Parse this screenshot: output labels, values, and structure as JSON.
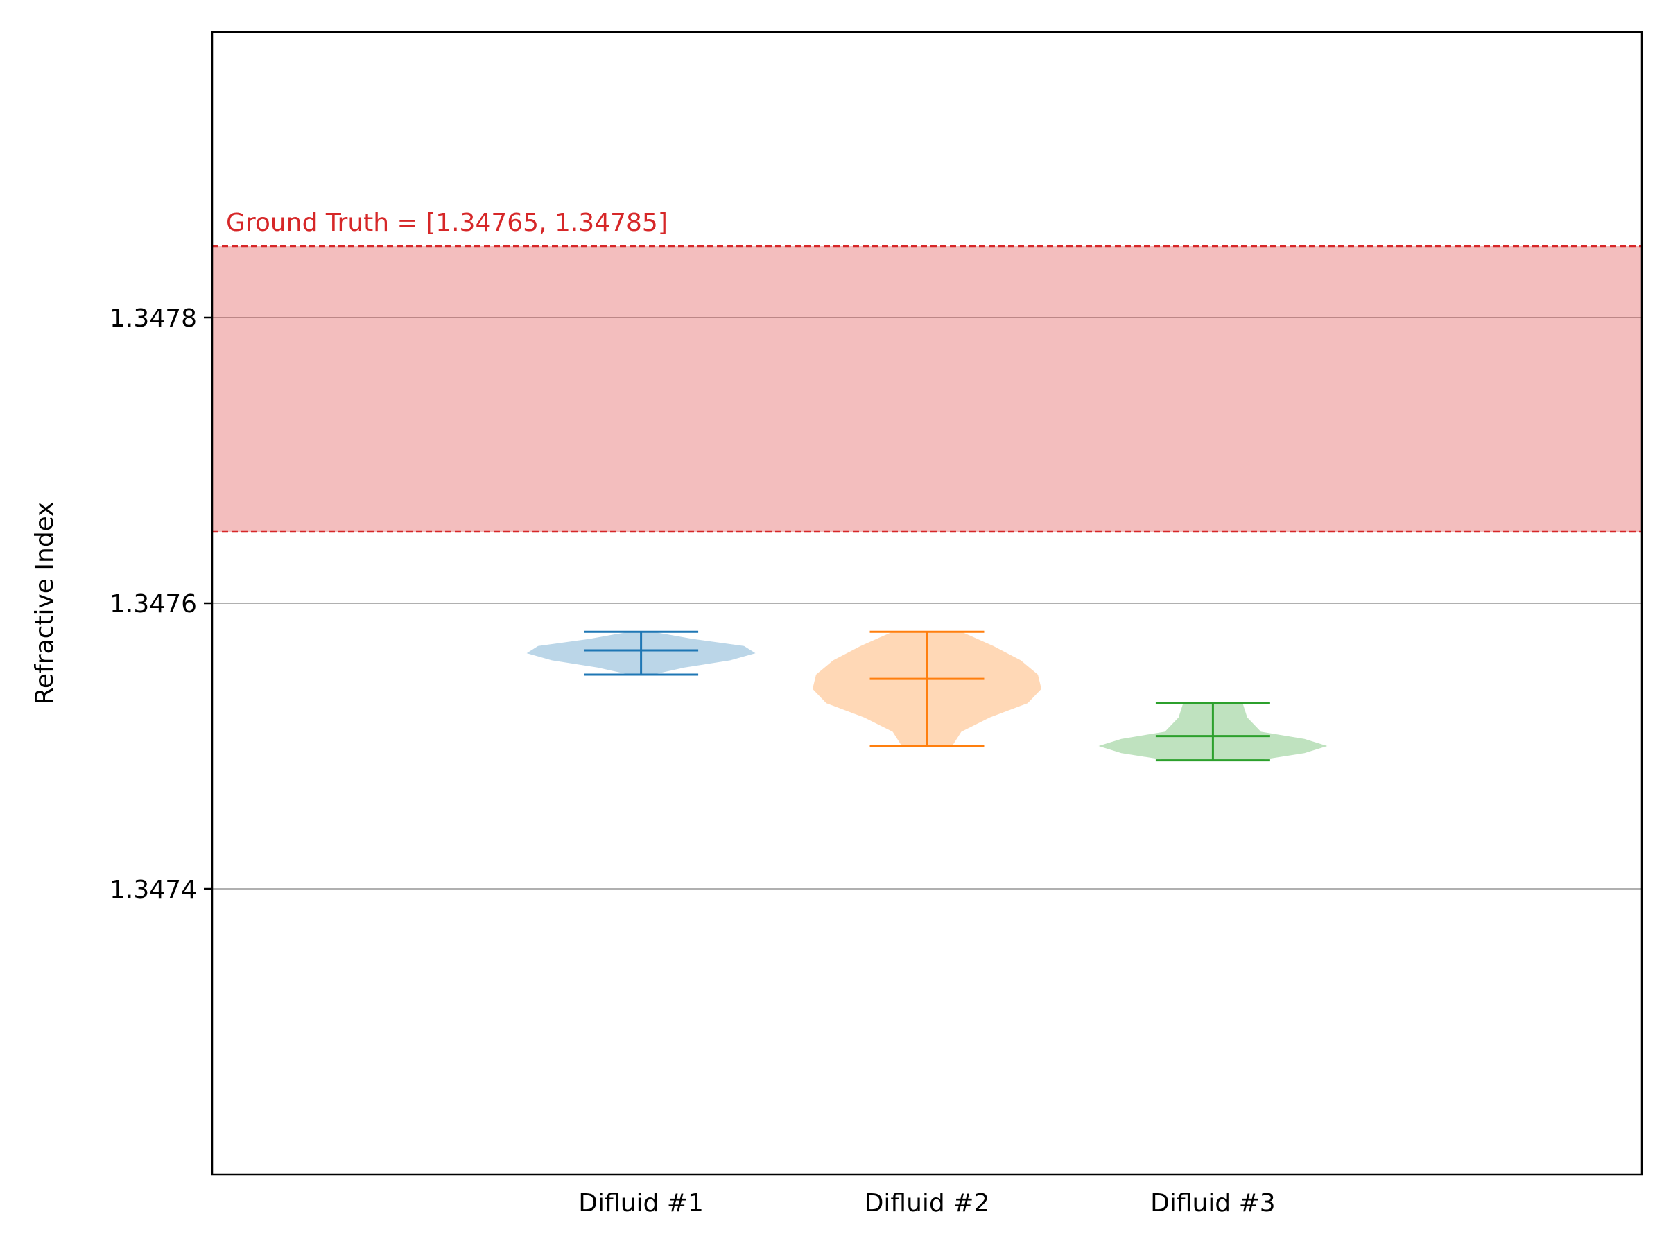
{
  "chart_data": {
    "type": "violin",
    "title": "",
    "xlabel": "",
    "ylabel": "Refractive Index",
    "ylim": [
      1.3472,
      1.348
    ],
    "yticks": [
      {
        "value": 1.3474,
        "label": "1.3474"
      },
      {
        "value": 1.3476,
        "label": "1.3476"
      },
      {
        "value": 1.3478,
        "label": "1.3478"
      }
    ],
    "y_grid": true,
    "categories": [
      "Difluid #1",
      "Difluid #2",
      "Difluid #3"
    ],
    "series": [
      {
        "category": "Difluid #1",
        "color": "#1f77b4",
        "min": 1.34755,
        "mean": 1.347567,
        "max": 1.34758,
        "density": [
          [
            1.34755,
            0.1
          ],
          [
            1.347555,
            0.38
          ],
          [
            1.34756,
            0.78
          ],
          [
            1.347565,
            1.0
          ],
          [
            1.34757,
            0.9
          ],
          [
            1.347575,
            0.45
          ],
          [
            1.34758,
            0.1
          ]
        ]
      },
      {
        "category": "Difluid #2",
        "color": "#ff7f0e",
        "min": 1.3475,
        "mean": 1.347547,
        "max": 1.34758,
        "density": [
          [
            1.3475,
            0.22
          ],
          [
            1.34751,
            0.3
          ],
          [
            1.34752,
            0.55
          ],
          [
            1.34753,
            0.88
          ],
          [
            1.34754,
            1.0
          ],
          [
            1.34755,
            0.97
          ],
          [
            1.34756,
            0.82
          ],
          [
            1.34757,
            0.58
          ],
          [
            1.34758,
            0.3
          ]
        ]
      },
      {
        "category": "Difluid #3",
        "color": "#2ca02c",
        "min": 1.34749,
        "mean": 1.347507,
        "max": 1.34753,
        "density": [
          [
            1.34749,
            0.4
          ],
          [
            1.347495,
            0.8
          ],
          [
            1.3475,
            1.0
          ],
          [
            1.347505,
            0.8
          ],
          [
            1.34751,
            0.42
          ],
          [
            1.34752,
            0.3
          ],
          [
            1.34753,
            0.26
          ]
        ]
      }
    ],
    "ground_truth_band": {
      "low": 1.34765,
      "high": 1.34785,
      "label": "Ground Truth = [1.34765, 1.34785]",
      "color": "#d62728"
    }
  }
}
